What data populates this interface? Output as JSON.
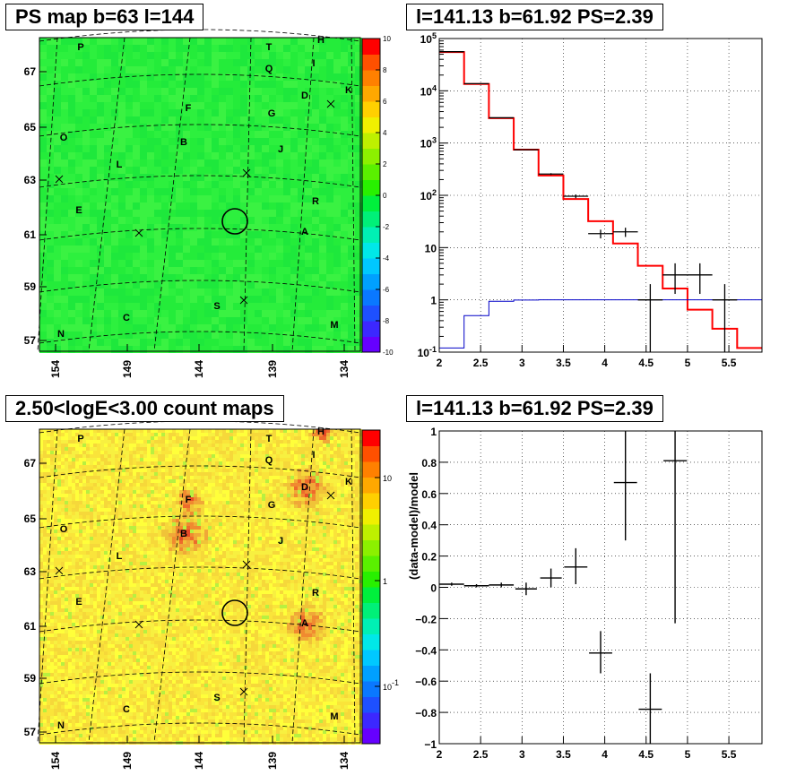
{
  "panels": {
    "ps_map_title": "PS map b=63 l=144",
    "spectrum_title": "l=141.13 b=61.92 PS=2.39",
    "count_map_title": "2.50<logE<3.00 count maps",
    "residual_title": "l=141.13 b=61.92 PS=2.39"
  },
  "colors": {
    "model_line": "#ff0000",
    "background_model_line": "#0000c8",
    "data_marks": "#000000",
    "ps_map_fill": "#22ee3a",
    "grid": "#000000"
  },
  "chart_data": [
    {
      "type": "heatmap",
      "title": "PS map b=63 l=144",
      "xticks": [
        "154",
        "149",
        "144",
        "139",
        "134"
      ],
      "yticks": [
        "67",
        "65",
        "63",
        "61",
        "59",
        "57"
      ],
      "colorbar": {
        "ticks": [
          "10",
          "8",
          "6",
          "4",
          "2",
          "0",
          "-2",
          "-4",
          "-6",
          "-8",
          "-10"
        ],
        "range": [
          -10,
          10
        ]
      },
      "source_labels": [
        "P",
        "T",
        "H",
        "Q",
        "I",
        "D",
        "K",
        "F",
        "G",
        "O",
        "B",
        "J",
        "L",
        "R",
        "E",
        "A",
        "S",
        "C",
        "N",
        "M"
      ]
    },
    {
      "type": "line",
      "title": "l=141.13 b=61.92 PS=2.39",
      "xlim": [
        2,
        5.9
      ],
      "ylim": [
        0.1,
        100000
      ],
      "yscale": "log",
      "grid": true,
      "xticks": [
        "2",
        "2.5",
        "3",
        "3.5",
        "4",
        "4.5",
        "5",
        "5.5"
      ],
      "yticks": [
        "10^-1",
        "1",
        "10",
        "10^2",
        "10^3",
        "10^4",
        "10^5"
      ],
      "series": [
        {
          "kind": "step",
          "color": "#ff0000",
          "edges": [
            2.0,
            2.3,
            2.6,
            2.9,
            3.2,
            3.5,
            3.8,
            4.1,
            4.4,
            4.7,
            5.0,
            5.3,
            5.6,
            5.9
          ],
          "values": [
            55000,
            13500,
            3000,
            750,
            240,
            85,
            32,
            12,
            4.5,
            1.65,
            0.65,
            0.28,
            0.12
          ]
        },
        {
          "kind": "step",
          "color": "#0000c8",
          "edges": [
            2.0,
            2.3,
            2.6,
            2.9,
            3.2,
            3.5,
            3.8,
            4.1,
            4.4,
            4.7,
            5.0,
            5.3,
            5.6,
            5.9
          ],
          "values": [
            0.12,
            0.5,
            0.94,
            0.99,
            1.0,
            1.0,
            1.0,
            1.0,
            1.0,
            1.0,
            1.0,
            1.0,
            1.0
          ]
        },
        {
          "kind": "errorbar",
          "color": "#000000",
          "points": [
            {
              "x": 2.15,
              "y": 56000,
              "xerr": 0.15,
              "ylo": 55500,
              "yhi": 56500
            },
            {
              "x": 2.45,
              "y": 13700,
              "xerr": 0.15,
              "ylo": 13500,
              "yhi": 13900
            },
            {
              "x": 2.75,
              "y": 3050,
              "xerr": 0.15,
              "ylo": 3000,
              "yhi": 3100
            },
            {
              "x": 3.05,
              "y": 745,
              "xerr": 0.15,
              "ylo": 735,
              "yhi": 755
            },
            {
              "x": 3.35,
              "y": 255,
              "xerr": 0.15,
              "ylo": 245,
              "yhi": 265
            },
            {
              "x": 3.65,
              "y": 96,
              "xerr": 0.15,
              "ylo": 88,
              "yhi": 104
            },
            {
              "x": 3.95,
              "y": 18.5,
              "xerr": 0.15,
              "ylo": 15,
              "yhi": 22
            },
            {
              "x": 4.25,
              "y": 20,
              "xerr": 0.15,
              "ylo": 16,
              "yhi": 24
            },
            {
              "x": 4.55,
              "y": 1.0,
              "xerr": 0.15,
              "ylo": 0.1,
              "yhi": 2.0
            },
            {
              "x": 4.85,
              "y": 3.0,
              "xerr": 0.15,
              "ylo": 1.3,
              "yhi": 5.0
            },
            {
              "x": 5.15,
              "y": 3.0,
              "xerr": 0.15,
              "ylo": 1.3,
              "yhi": 5.0
            },
            {
              "x": 5.45,
              "y": 1.0,
              "xerr": 0.15,
              "ylo": 0.1,
              "yhi": 2.0
            }
          ]
        }
      ]
    },
    {
      "type": "heatmap",
      "title": "2.50<logE<3.00 count maps",
      "xticks": [
        "154",
        "149",
        "144",
        "139",
        "134"
      ],
      "yticks": [
        "67",
        "65",
        "63",
        "61",
        "59",
        "57"
      ],
      "colorbar": {
        "ticks": [
          "10",
          "1",
          "10^-1"
        ],
        "scale": "log"
      },
      "hotspots": [
        "B",
        "A",
        "D",
        "F",
        "H"
      ],
      "source_labels": [
        "P",
        "T",
        "H",
        "Q",
        "I",
        "D",
        "K",
        "F",
        "G",
        "O",
        "B",
        "J",
        "L",
        "R",
        "E",
        "A",
        "S",
        "C",
        "N",
        "M"
      ]
    },
    {
      "type": "scatter",
      "title": "l=141.13 b=61.92 PS=2.39",
      "ylabel": "(data-model)/model",
      "xlim": [
        2,
        5.9
      ],
      "ylim": [
        -1,
        1
      ],
      "grid": true,
      "xticks": [
        "2",
        "2.5",
        "3",
        "3.5",
        "4",
        "4.5",
        "5",
        "5.5"
      ],
      "yticks": [
        "1",
        "0.8",
        "0.6",
        "0.4",
        "0.2",
        "0",
        "−0.2",
        "−0.4",
        "−0.6",
        "−0.8",
        "−1"
      ],
      "points": [
        {
          "x": 2.15,
          "y": 0.02,
          "xerr": 0.15,
          "ylo": 0.01,
          "yhi": 0.03
        },
        {
          "x": 2.45,
          "y": 0.01,
          "xerr": 0.15,
          "ylo": 0.0,
          "yhi": 0.02
        },
        {
          "x": 2.75,
          "y": 0.015,
          "xerr": 0.15,
          "ylo": 0.0,
          "yhi": 0.03
        },
        {
          "x": 3.05,
          "y": -0.01,
          "xerr": 0.13,
          "ylo": -0.05,
          "yhi": 0.03
        },
        {
          "x": 3.35,
          "y": 0.06,
          "xerr": 0.13,
          "ylo": 0.0,
          "yhi": 0.12
        },
        {
          "x": 3.65,
          "y": 0.13,
          "xerr": 0.14,
          "ylo": 0.02,
          "yhi": 0.25
        },
        {
          "x": 3.95,
          "y": -0.42,
          "xerr": 0.14,
          "ylo": -0.55,
          "yhi": -0.28
        },
        {
          "x": 4.25,
          "y": 0.67,
          "xerr": 0.14,
          "ylo": 0.3,
          "yhi": 1.0
        },
        {
          "x": 4.55,
          "y": -0.78,
          "xerr": 0.14,
          "ylo": -1.0,
          "yhi": -0.55
        },
        {
          "x": 4.85,
          "y": 0.81,
          "xerr": 0.14,
          "ylo": -0.23,
          "yhi": 1.0
        }
      ]
    }
  ]
}
